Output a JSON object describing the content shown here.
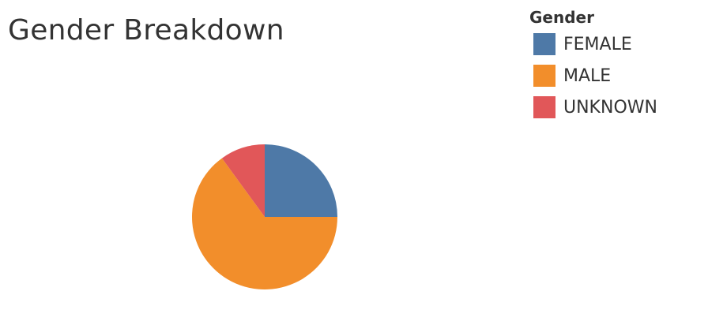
{
  "chart_data": {
    "type": "pie",
    "title": "Gender Breakdown",
    "legend_title": "Gender",
    "legend_position": "top-right",
    "categories": [
      "FEMALE",
      "MALE",
      "UNKNOWN"
    ],
    "values": [
      25,
      65,
      10
    ],
    "colors": [
      "#4e79a7",
      "#f28e2b",
      "#e15759"
    ],
    "start_angle_deg": 0,
    "direction": "clockwise"
  }
}
